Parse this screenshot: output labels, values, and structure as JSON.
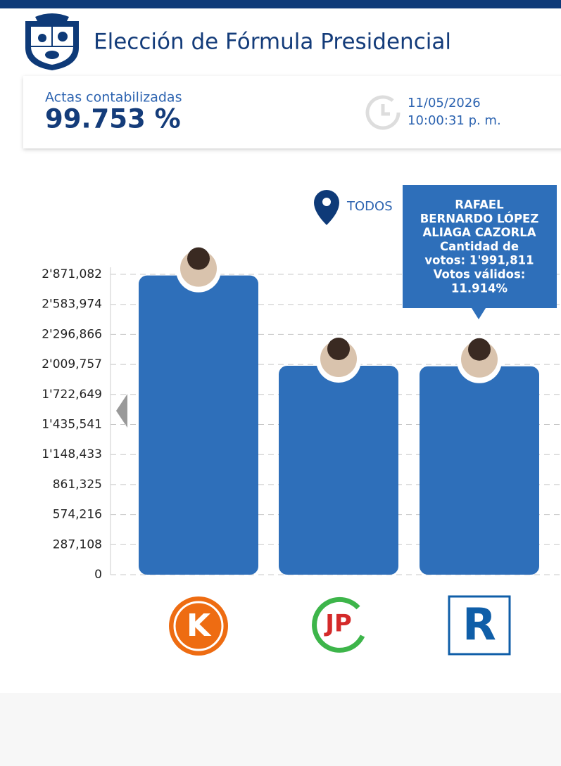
{
  "header": {
    "title": "Elección de Fórmula Presidencial"
  },
  "summary": {
    "label": "Actas contabilizadas",
    "percent": "99.753 %",
    "date": "11/05/2026",
    "time": "10:00:31 p. m."
  },
  "filter": {
    "label": "TODOS"
  },
  "tooltip": {
    "lines": [
      "RAFAEL",
      "BERNARDO LÓPEZ",
      "ALIAGA CAZORLA",
      "Cantidad de",
      "votos: 1'991,811",
      "Votos válidos:",
      "11.914%"
    ]
  },
  "chart_data": {
    "type": "bar",
    "categories": [
      "K",
      "JP",
      "R"
    ],
    "values": [
      2860000,
      1997000,
      1991811
    ],
    "color": "#2e6fba",
    "ylim": [
      0,
      2871082
    ],
    "yticks": [
      0,
      {
        "value": 287108,
        "label": "287,108"
      },
      {
        "value": 574216,
        "label": "574,216"
      },
      {
        "value": 861325,
        "label": "861,325"
      },
      {
        "value": 1148433,
        "label": "1'148,433"
      },
      {
        "value": 1435541,
        "label": "1'435,541"
      },
      {
        "value": 1722649,
        "label": "1'722,649"
      },
      {
        "value": 2009757,
        "label": "2'009,757"
      },
      {
        "value": 2296866,
        "label": "2'296,866"
      },
      {
        "value": 2583974,
        "label": "2'583,974"
      },
      {
        "value": 2871082,
        "label": "2'871,082"
      }
    ],
    "grid": true,
    "logo_colors": [
      "#ee6c12",
      "#d42a2a",
      "#0f5ea8"
    ]
  }
}
